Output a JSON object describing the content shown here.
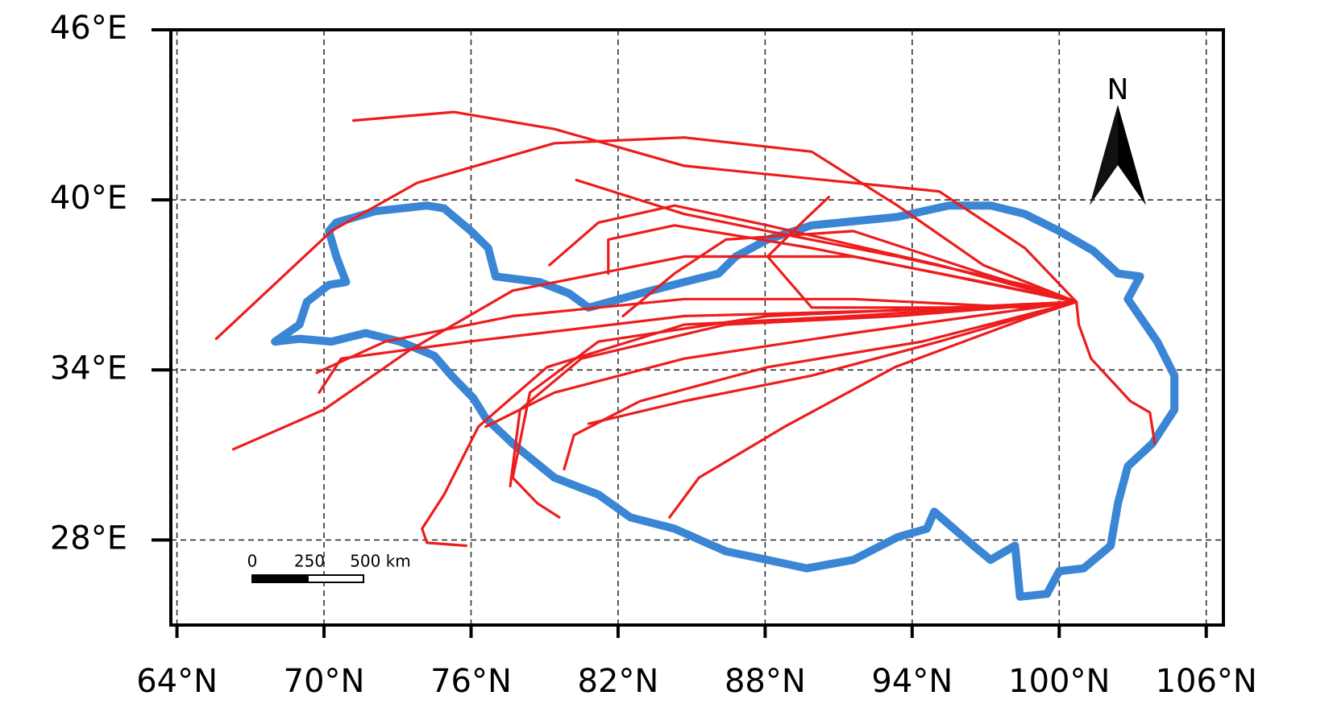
{
  "chart_data": {
    "type": "map",
    "xlim": [
      63.75,
      106.7
    ],
    "ylim": [
      25,
      46
    ],
    "xticks": [
      {
        "value": 64,
        "label": "64°N"
      },
      {
        "value": 70,
        "label": "70°N"
      },
      {
        "value": 76,
        "label": "76°N"
      },
      {
        "value": 82,
        "label": "82°N"
      },
      {
        "value": 88,
        "label": "88°N"
      },
      {
        "value": 94,
        "label": "94°N"
      },
      {
        "value": 100,
        "label": "100°N"
      },
      {
        "value": 106,
        "label": "106°N"
      }
    ],
    "yticks": [
      {
        "value": 28,
        "label": "28°E"
      },
      {
        "value": 34,
        "label": "34°E"
      },
      {
        "value": 40,
        "label": "40°E"
      },
      {
        "value": 46,
        "label": "46°E"
      }
    ],
    "grid": true,
    "north_label": "N",
    "scale_bar_labels": [
      "0",
      "250",
      "500 km"
    ],
    "boundary": {
      "color": "#3a86d4",
      "lon": [
        68.0,
        69.0,
        69.3,
        70.2,
        70.9,
        70.5,
        70.2,
        70.5,
        72.1,
        74.2,
        74.9,
        76.0,
        76.7,
        77.0,
        78.8,
        80.0,
        80.8,
        82.9,
        84.7,
        86.1,
        86.8,
        88.1,
        89.9,
        93.4,
        95.5,
        97.2,
        98.6,
        100.0,
        101.4,
        102.4,
        103.3,
        102.8,
        104.0,
        104.7,
        104.7,
        103.8,
        102.8,
        102.4,
        102.1,
        101.0,
        100.0,
        99.5,
        98.4,
        98.2,
        97.2,
        96.5,
        94.9,
        94.6,
        93.4,
        91.6,
        89.7,
        88.1,
        86.4,
        84.3,
        82.5,
        81.2,
        79.4,
        77.7,
        76.6,
        76.1,
        75.2,
        74.5,
        73.1,
        71.7,
        70.3,
        69.0,
        68.0
      ],
      "lat": [
        35.0,
        35.6,
        36.4,
        37.0,
        37.1,
        38.0,
        38.9,
        39.2,
        39.6,
        39.8,
        39.7,
        38.9,
        38.3,
        37.3,
        37.1,
        36.7,
        36.2,
        36.7,
        37.1,
        37.4,
        38.0,
        38.6,
        39.1,
        39.4,
        39.8,
        39.8,
        39.5,
        38.9,
        38.2,
        37.4,
        37.3,
        36.5,
        35.0,
        33.8,
        32.6,
        31.4,
        30.6,
        29.3,
        27.8,
        27.0,
        26.9,
        26.1,
        26.0,
        27.8,
        27.3,
        27.8,
        29.0,
        28.4,
        28.1,
        27.3,
        27.0,
        27.3,
        27.6,
        28.4,
        28.8,
        29.6,
        30.2,
        31.4,
        32.3,
        33.0,
        33.8,
        34.5,
        35.0,
        35.3,
        35.0,
        35.1,
        35.0
      ]
    },
    "trajectory_color": "#ee1c1c",
    "trajectories": [
      {
        "lon": [
          71.2,
          75.3,
          79.4,
          84.7,
          91.6,
          95.1,
          98.6,
          100.7
        ],
        "lat": [
          42.8,
          43.1,
          42.5,
          41.2,
          40.6,
          40.3,
          38.3,
          36.4
        ]
      },
      {
        "lon": [
          65.6,
          70.3,
          73.8,
          79.4,
          84.7,
          89.9,
          93.4,
          96.9,
          100.7
        ],
        "lat": [
          35.1,
          38.9,
          40.6,
          42.0,
          42.2,
          41.7,
          39.8,
          37.7,
          36.4
        ]
      },
      {
        "lon": [
          66.3,
          70.0,
          73.5,
          77.7,
          84.7,
          91.6,
          96.9,
          100.7
        ],
        "lat": [
          31.2,
          32.6,
          34.7,
          36.8,
          38.0,
          38.0,
          37.1,
          36.4
        ]
      },
      {
        "lon": [
          69.7,
          72.5,
          77.7,
          84.7,
          91.6,
          98.6,
          100.7
        ],
        "lat": [
          33.9,
          35.0,
          35.9,
          36.5,
          36.5,
          36.2,
          36.4
        ]
      },
      {
        "lon": [
          69.8,
          70.7,
          75.9,
          84.7,
          93.4,
          100.7
        ],
        "lat": [
          33.2,
          34.4,
          35.0,
          35.9,
          36.1,
          36.4
        ]
      },
      {
        "lon": [
          75.8,
          74.2,
          74.0,
          74.9,
          76.3,
          79.1,
          84.7,
          91.6,
          100.7
        ],
        "lat": [
          27.8,
          27.9,
          28.4,
          29.6,
          32.0,
          34.1,
          35.6,
          35.9,
          36.4
        ]
      },
      {
        "lon": [
          77.6,
          78.0,
          80.5,
          86.4,
          93.4,
          100.7
        ],
        "lat": [
          29.9,
          32.6,
          34.4,
          35.6,
          35.9,
          36.4
        ]
      },
      {
        "lon": [
          79.8,
          80.2,
          82.9,
          88.1,
          94.4,
          100.7
        ],
        "lat": [
          30.5,
          31.7,
          32.9,
          34.1,
          35.0,
          36.4
        ]
      },
      {
        "lon": [
          84.1,
          85.3,
          88.8,
          93.3,
          98.6,
          100.7
        ],
        "lat": [
          28.8,
          30.2,
          32.0,
          34.1,
          35.8,
          36.4
        ]
      },
      {
        "lon": [
          80.8,
          84.7,
          89.9,
          95.1,
          100.7
        ],
        "lat": [
          32.1,
          32.9,
          33.8,
          35.0,
          36.4
        ]
      },
      {
        "lon": [
          76.6,
          79.4,
          84.7,
          91.6,
          100.7
        ],
        "lat": [
          32.0,
          33.2,
          34.4,
          35.3,
          36.4
        ]
      },
      {
        "lon": [
          79.6,
          78.7,
          77.7,
          78.4,
          81.2,
          88.1,
          100.7
        ],
        "lat": [
          28.8,
          29.3,
          30.2,
          33.2,
          35.0,
          35.9,
          36.4
        ]
      },
      {
        "lon": [
          80.3,
          84.7,
          88.1,
          93.4,
          98.6,
          100.7
        ],
        "lat": [
          40.7,
          39.5,
          38.9,
          38.0,
          37.0,
          36.4
        ]
      },
      {
        "lon": [
          79.2,
          81.2,
          84.3,
          88.1,
          95.1,
          100.7
        ],
        "lat": [
          37.7,
          39.2,
          39.8,
          39.1,
          37.7,
          36.4
        ]
      },
      {
        "lon": [
          82.2,
          84.3,
          86.4,
          91.6,
          96.9,
          100.7
        ],
        "lat": [
          35.9,
          37.4,
          38.6,
          38.9,
          37.4,
          36.4
        ]
      },
      {
        "lon": [
          90.6,
          89.5,
          88.1,
          89.9,
          96.9,
          100.7
        ],
        "lat": [
          40.1,
          39.2,
          38.0,
          36.2,
          36.2,
          36.4
        ]
      },
      {
        "lon": [
          103.9,
          103.7,
          102.9,
          101.3,
          100.8,
          100.7
        ],
        "lat": [
          31.4,
          32.5,
          32.9,
          34.4,
          35.6,
          36.4
        ]
      },
      {
        "lon": [
          81.6,
          81.6,
          84.3,
          89.9,
          95.1,
          100.7
        ],
        "lat": [
          37.4,
          38.6,
          39.1,
          38.3,
          37.4,
          36.4
        ]
      }
    ]
  }
}
